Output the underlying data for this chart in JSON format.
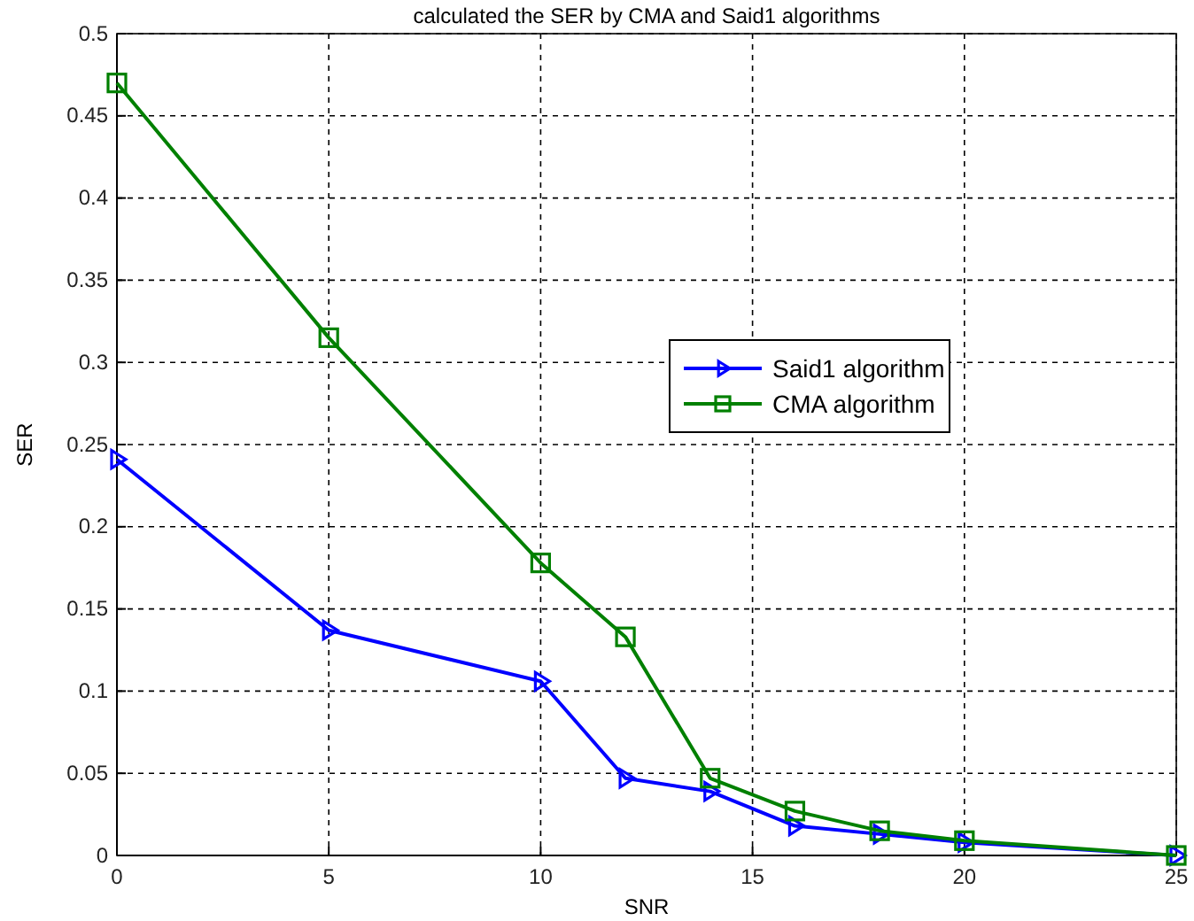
{
  "chart_data": {
    "type": "line",
    "title": "calculated the SER by CMA and Said1 algorithms",
    "xlabel": "SNR",
    "ylabel": "SER",
    "series": [
      {
        "name": "Said1 algorithm",
        "color": "#0000ff",
        "marker": "triangle",
        "x": [
          0,
          5,
          10,
          12,
          14,
          16,
          18,
          20,
          25
        ],
        "values": [
          0.241,
          0.137,
          0.106,
          0.047,
          0.039,
          0.018,
          0.013,
          0.008,
          0
        ]
      },
      {
        "name": "CMA algorithm",
        "color": "#008000",
        "marker": "square",
        "x": [
          0,
          5,
          10,
          12,
          14,
          16,
          18,
          20,
          25
        ],
        "values": [
          0.47,
          0.315,
          0.178,
          0.133,
          0.047,
          0.027,
          0.015,
          0.009,
          0
        ]
      }
    ],
    "xlim": [
      0,
      25
    ],
    "xticks": [
      0,
      5,
      10,
      15,
      20,
      25
    ],
    "ylim": [
      0,
      0.5
    ],
    "yticks": [
      0,
      0.05,
      0.1,
      0.15,
      0.2,
      0.25,
      0.3,
      0.35,
      0.4,
      0.45,
      0.5
    ],
    "grid": true,
    "line_style": "solid",
    "legend": "right"
  }
}
